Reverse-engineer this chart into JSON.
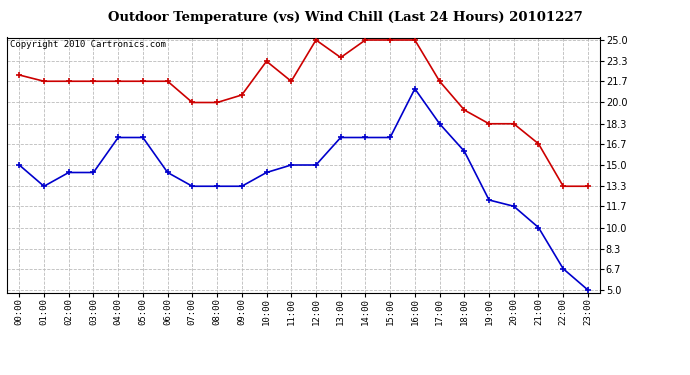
{
  "title": "Outdoor Temperature (vs) Wind Chill (Last 24 Hours) 20101227",
  "copyright_text": "Copyright 2010 Cartronics.com",
  "hours": [
    "00:00",
    "01:00",
    "02:00",
    "03:00",
    "04:00",
    "05:00",
    "06:00",
    "07:00",
    "08:00",
    "09:00",
    "10:00",
    "11:00",
    "12:00",
    "13:00",
    "14:00",
    "15:00",
    "16:00",
    "17:00",
    "18:00",
    "19:00",
    "20:00",
    "21:00",
    "22:00",
    "23:00"
  ],
  "red_data": [
    22.2,
    21.7,
    21.7,
    21.7,
    21.7,
    21.7,
    21.7,
    20.0,
    20.0,
    20.6,
    23.3,
    21.7,
    25.0,
    23.6,
    25.0,
    25.0,
    25.0,
    21.7,
    19.4,
    18.3,
    18.3,
    16.7,
    13.3,
    13.3
  ],
  "blue_data": [
    15.0,
    13.3,
    14.4,
    14.4,
    17.2,
    17.2,
    14.4,
    13.3,
    13.3,
    13.3,
    14.4,
    15.0,
    15.0,
    17.2,
    17.2,
    17.2,
    21.1,
    18.3,
    16.1,
    12.2,
    11.7,
    10.0,
    6.7,
    5.0
  ],
  "red_color": "#cc0000",
  "blue_color": "#0000cc",
  "ylim_min": 5.0,
  "ylim_max": 25.0,
  "yticks": [
    5.0,
    6.7,
    8.3,
    10.0,
    11.7,
    13.3,
    15.0,
    16.7,
    18.3,
    20.0,
    21.7,
    23.3,
    25.0
  ],
  "bg_color": "#ffffff",
  "grid_color": "#bbbbbb",
  "title_fontsize": 9.5,
  "copyright_fontsize": 6.5,
  "tick_fontsize": 6.5,
  "ytick_fontsize": 7.0
}
